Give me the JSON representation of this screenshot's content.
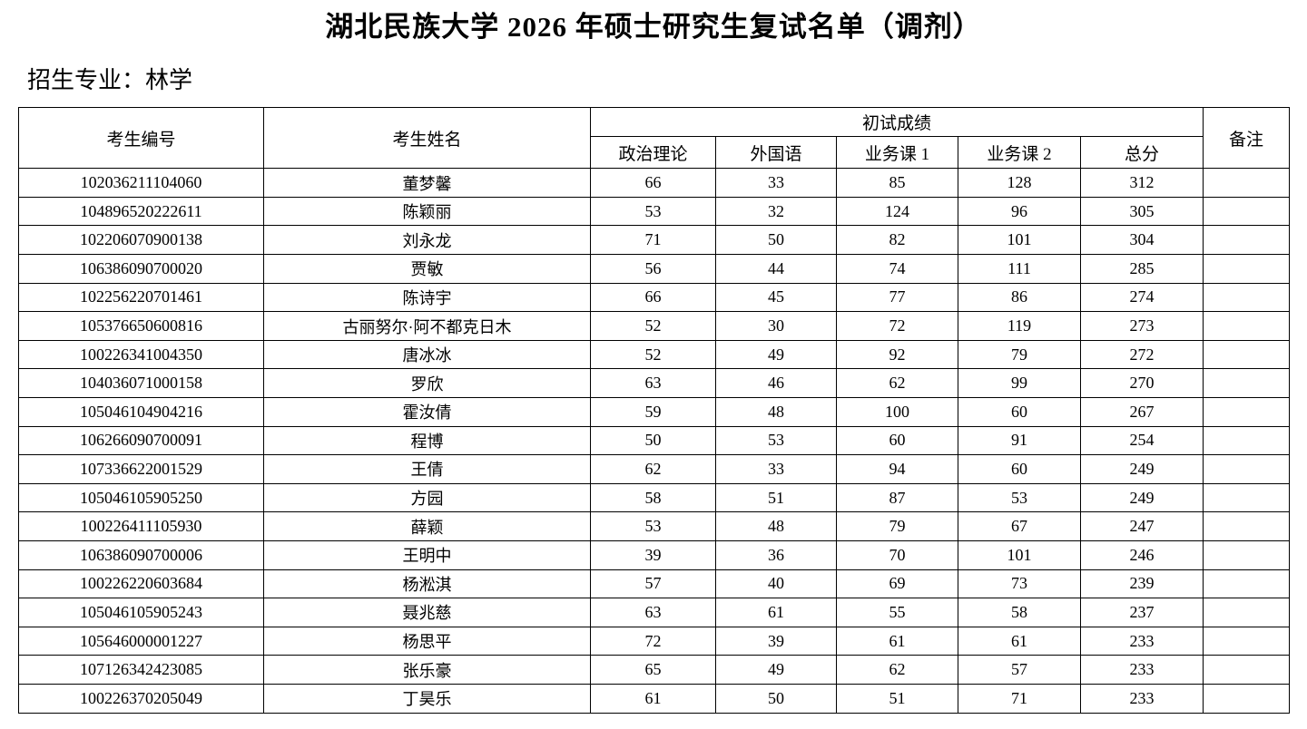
{
  "page": {
    "title": "湖北民族大学 2026 年硕士研究生复试名单（调剂）",
    "subtitle": "招生专业：林学"
  },
  "table": {
    "headers": {
      "candidate_id": "考生编号",
      "candidate_name": "考生姓名",
      "initial_test_scores": "初试成绩",
      "political_theory": "政治理论",
      "foreign_language": "外国语",
      "business_course_1": "业务课 1",
      "business_course_2": "业务课 2",
      "total_score": "总分",
      "remarks": "备注"
    },
    "rows": [
      {
        "id": "102036211104060",
        "name": "董梦馨",
        "politics": "66",
        "foreign": "33",
        "course1": "85",
        "course2": "128",
        "total": "312",
        "remarks": ""
      },
      {
        "id": "104896520222611",
        "name": "陈颖丽",
        "politics": "53",
        "foreign": "32",
        "course1": "124",
        "course2": "96",
        "total": "305",
        "remarks": ""
      },
      {
        "id": "102206070900138",
        "name": "刘永龙",
        "politics": "71",
        "foreign": "50",
        "course1": "82",
        "course2": "101",
        "total": "304",
        "remarks": ""
      },
      {
        "id": "106386090700020",
        "name": "贾敏",
        "politics": "56",
        "foreign": "44",
        "course1": "74",
        "course2": "111",
        "total": "285",
        "remarks": ""
      },
      {
        "id": "102256220701461",
        "name": "陈诗宇",
        "politics": "66",
        "foreign": "45",
        "course1": "77",
        "course2": "86",
        "total": "274",
        "remarks": ""
      },
      {
        "id": "105376650600816",
        "name": "古丽努尔·阿不都克日木",
        "politics": "52",
        "foreign": "30",
        "course1": "72",
        "course2": "119",
        "total": "273",
        "remarks": ""
      },
      {
        "id": "100226341004350",
        "name": "唐冰冰",
        "politics": "52",
        "foreign": "49",
        "course1": "92",
        "course2": "79",
        "total": "272",
        "remarks": ""
      },
      {
        "id": "104036071000158",
        "name": "罗欣",
        "politics": "63",
        "foreign": "46",
        "course1": "62",
        "course2": "99",
        "total": "270",
        "remarks": ""
      },
      {
        "id": "105046104904216",
        "name": "霍汝倩",
        "politics": "59",
        "foreign": "48",
        "course1": "100",
        "course2": "60",
        "total": "267",
        "remarks": ""
      },
      {
        "id": "106266090700091",
        "name": "程博",
        "politics": "50",
        "foreign": "53",
        "course1": "60",
        "course2": "91",
        "total": "254",
        "remarks": ""
      },
      {
        "id": "107336622001529",
        "name": "王倩",
        "politics": "62",
        "foreign": "33",
        "course1": "94",
        "course2": "60",
        "total": "249",
        "remarks": ""
      },
      {
        "id": "105046105905250",
        "name": "方园",
        "politics": "58",
        "foreign": "51",
        "course1": "87",
        "course2": "53",
        "total": "249",
        "remarks": ""
      },
      {
        "id": "100226411105930",
        "name": "薛颖",
        "politics": "53",
        "foreign": "48",
        "course1": "79",
        "course2": "67",
        "total": "247",
        "remarks": ""
      },
      {
        "id": "106386090700006",
        "name": "王明中",
        "politics": "39",
        "foreign": "36",
        "course1": "70",
        "course2": "101",
        "total": "246",
        "remarks": ""
      },
      {
        "id": "100226220603684",
        "name": "杨淞淇",
        "politics": "57",
        "foreign": "40",
        "course1": "69",
        "course2": "73",
        "total": "239",
        "remarks": ""
      },
      {
        "id": "105046105905243",
        "name": "聂兆慈",
        "politics": "63",
        "foreign": "61",
        "course1": "55",
        "course2": "58",
        "total": "237",
        "remarks": ""
      },
      {
        "id": "105646000001227",
        "name": "杨思平",
        "politics": "72",
        "foreign": "39",
        "course1": "61",
        "course2": "61",
        "total": "233",
        "remarks": ""
      },
      {
        "id": "107126342423085",
        "name": "张乐豪",
        "politics": "65",
        "foreign": "49",
        "course1": "62",
        "course2": "57",
        "total": "233",
        "remarks": ""
      },
      {
        "id": "100226370205049",
        "name": "丁昊乐",
        "politics": "61",
        "foreign": "50",
        "course1": "51",
        "course2": "71",
        "total": "233",
        "remarks": ""
      }
    ]
  }
}
